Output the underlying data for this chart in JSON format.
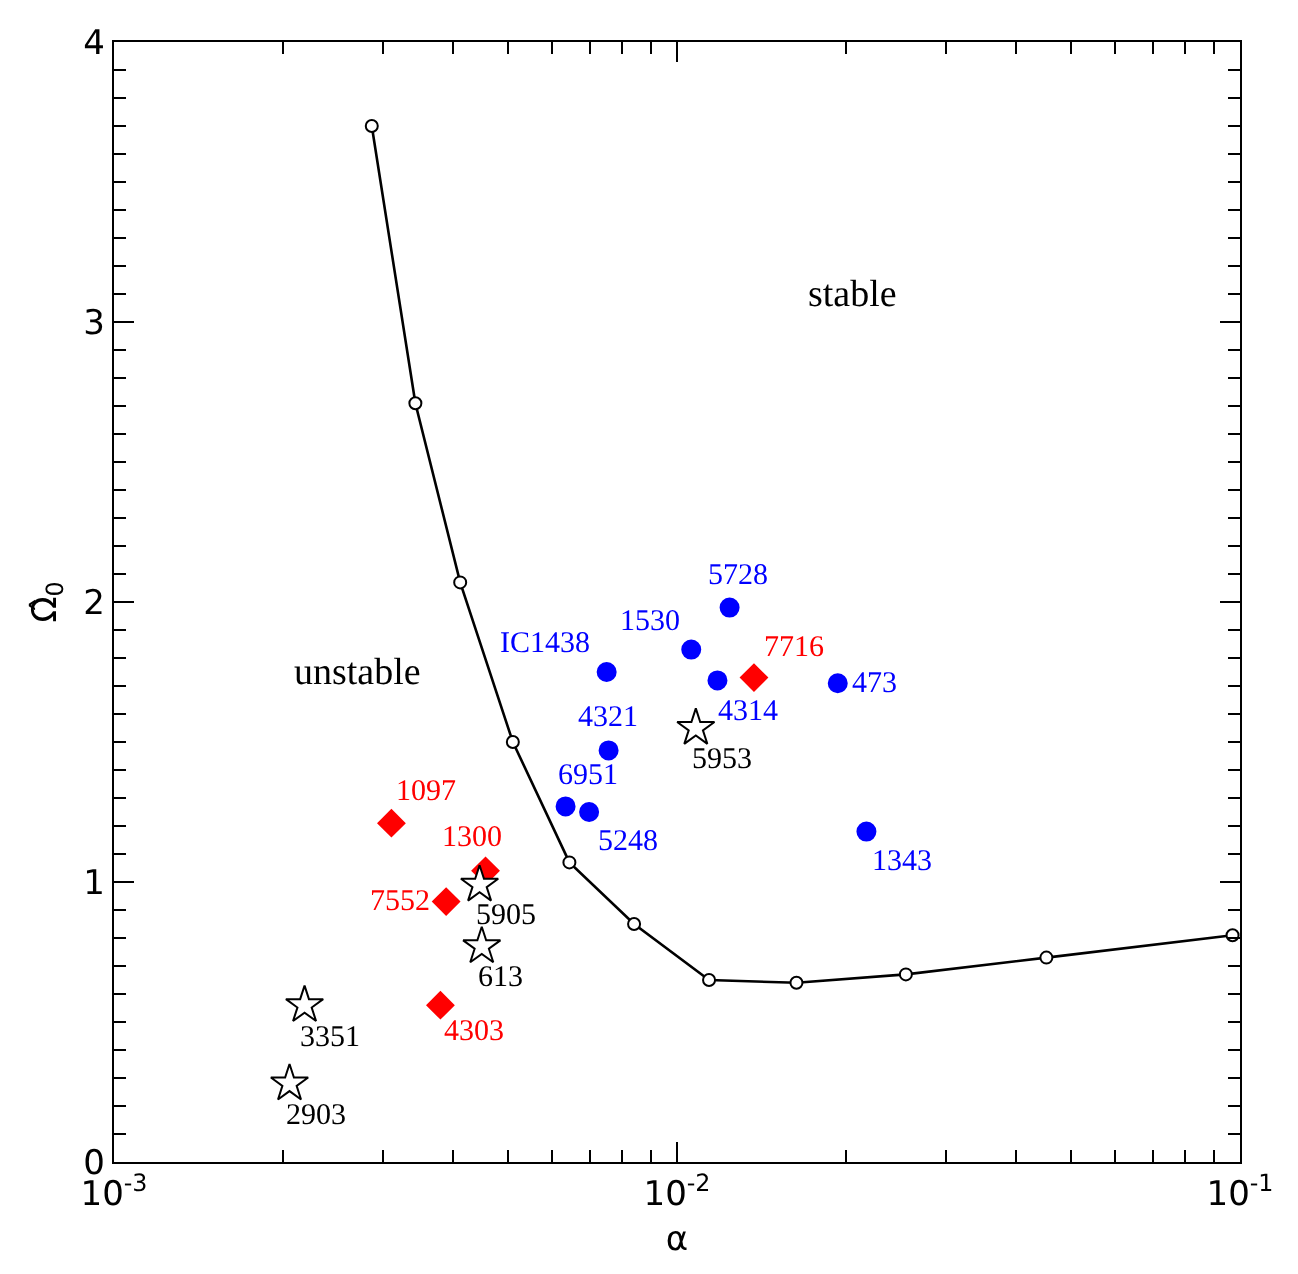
{
  "chart_data": {
    "type": "scatter",
    "xlabel": "α",
    "ylabel": "Ω̂$_{0}$",
    "log": "x",
    "xlim": [
      0.001,
      0.1
    ],
    "xticks": [
      {
        "value": 0.001,
        "label": "10$^{-3}$"
      },
      {
        "value": 0.01,
        "label": "10$^{-2}$"
      },
      {
        "value": 0.1,
        "label": "10$^{-1}$"
      }
    ],
    "ylim": [
      0,
      4
    ],
    "yticks": [
      0,
      1,
      2,
      3,
      4
    ],
    "annotations": [
      "stable",
      "unstable",
      {
        "text": "5728",
        "x": 0.0124,
        "y": 1.98
      },
      {
        "text": "1530",
        "x": 0.0106,
        "y": 1.83
      },
      {
        "text": "IC1438",
        "x": 0.0075,
        "y": 1.75
      },
      {
        "text": "4314",
        "x": 0.0118,
        "y": 1.72
      },
      {
        "text": "473",
        "x": 0.0193,
        "y": 1.71
      },
      {
        "text": "4321",
        "x": 0.00756,
        "y": 1.47
      },
      {
        "text": "6951",
        "x": 0.00634,
        "y": 1.27
      },
      {
        "text": "5248",
        "x": 0.00698,
        "y": 1.25
      },
      {
        "text": "1343",
        "x": 0.0217,
        "y": 1.18
      },
      {
        "text": "7716",
        "x": 0.0137,
        "y": 1.73
      },
      {
        "text": "1097",
        "x": 0.00311,
        "y": 1.21
      },
      {
        "text": "1300",
        "x": 0.00457,
        "y": 1.04
      },
      {
        "text": "7552",
        "x": 0.00389,
        "y": 0.93
      },
      {
        "text": "4303",
        "x": 0.0038,
        "y": 0.56
      },
      {
        "text": "5953",
        "x": 0.0108,
        "y": 1.55
      },
      {
        "text": "5905",
        "x": 0.00446,
        "y": 0.99
      },
      {
        "text": "613",
        "x": 0.0045,
        "y": 0.77
      },
      {
        "text": "3351",
        "x": 0.00218,
        "y": 0.56
      },
      {
        "text": "2903",
        "x": 0.00205,
        "y": 0.28
      }
    ],
    "series": [
      {
        "type": "line",
        "color": "#000000",
        "marker": "circle",
        "line_style": "solid",
        "x": [
          0.00287,
          0.00343,
          0.00412,
          0.00511,
          0.00644,
          0.00839,
          0.0114,
          0.0163,
          0.0255,
          0.0453,
          0.097
        ],
        "values": [
          3.7,
          2.71,
          2.07,
          1.5,
          1.07,
          0.85,
          0.65,
          0.64,
          0.67,
          0.73,
          0.81
        ]
      },
      {
        "color": "#0000ff",
        "marker": "circle",
        "x": [
          0.0124,
          0.0106,
          0.0075,
          0.0118,
          0.0193,
          0.00756,
          0.00634,
          0.00698,
          0.0217
        ],
        "values": [
          1.98,
          1.83,
          1.75,
          1.72,
          1.71,
          1.47,
          1.27,
          1.25,
          1.18
        ]
      },
      {
        "color": "#ff0000",
        "marker": "diamond",
        "x": [
          0.0137,
          0.00311,
          0.00457,
          0.00389,
          0.0038
        ],
        "values": [
          1.73,
          1.21,
          1.04,
          0.93,
          0.56
        ]
      },
      {
        "color": "#000000",
        "marker": "star",
        "x": [
          0.0108,
          0.00446,
          0.0045,
          0.00218,
          0.00205
        ],
        "values": [
          1.55,
          0.99,
          0.77,
          0.56,
          0.28
        ]
      }
    ]
  }
}
